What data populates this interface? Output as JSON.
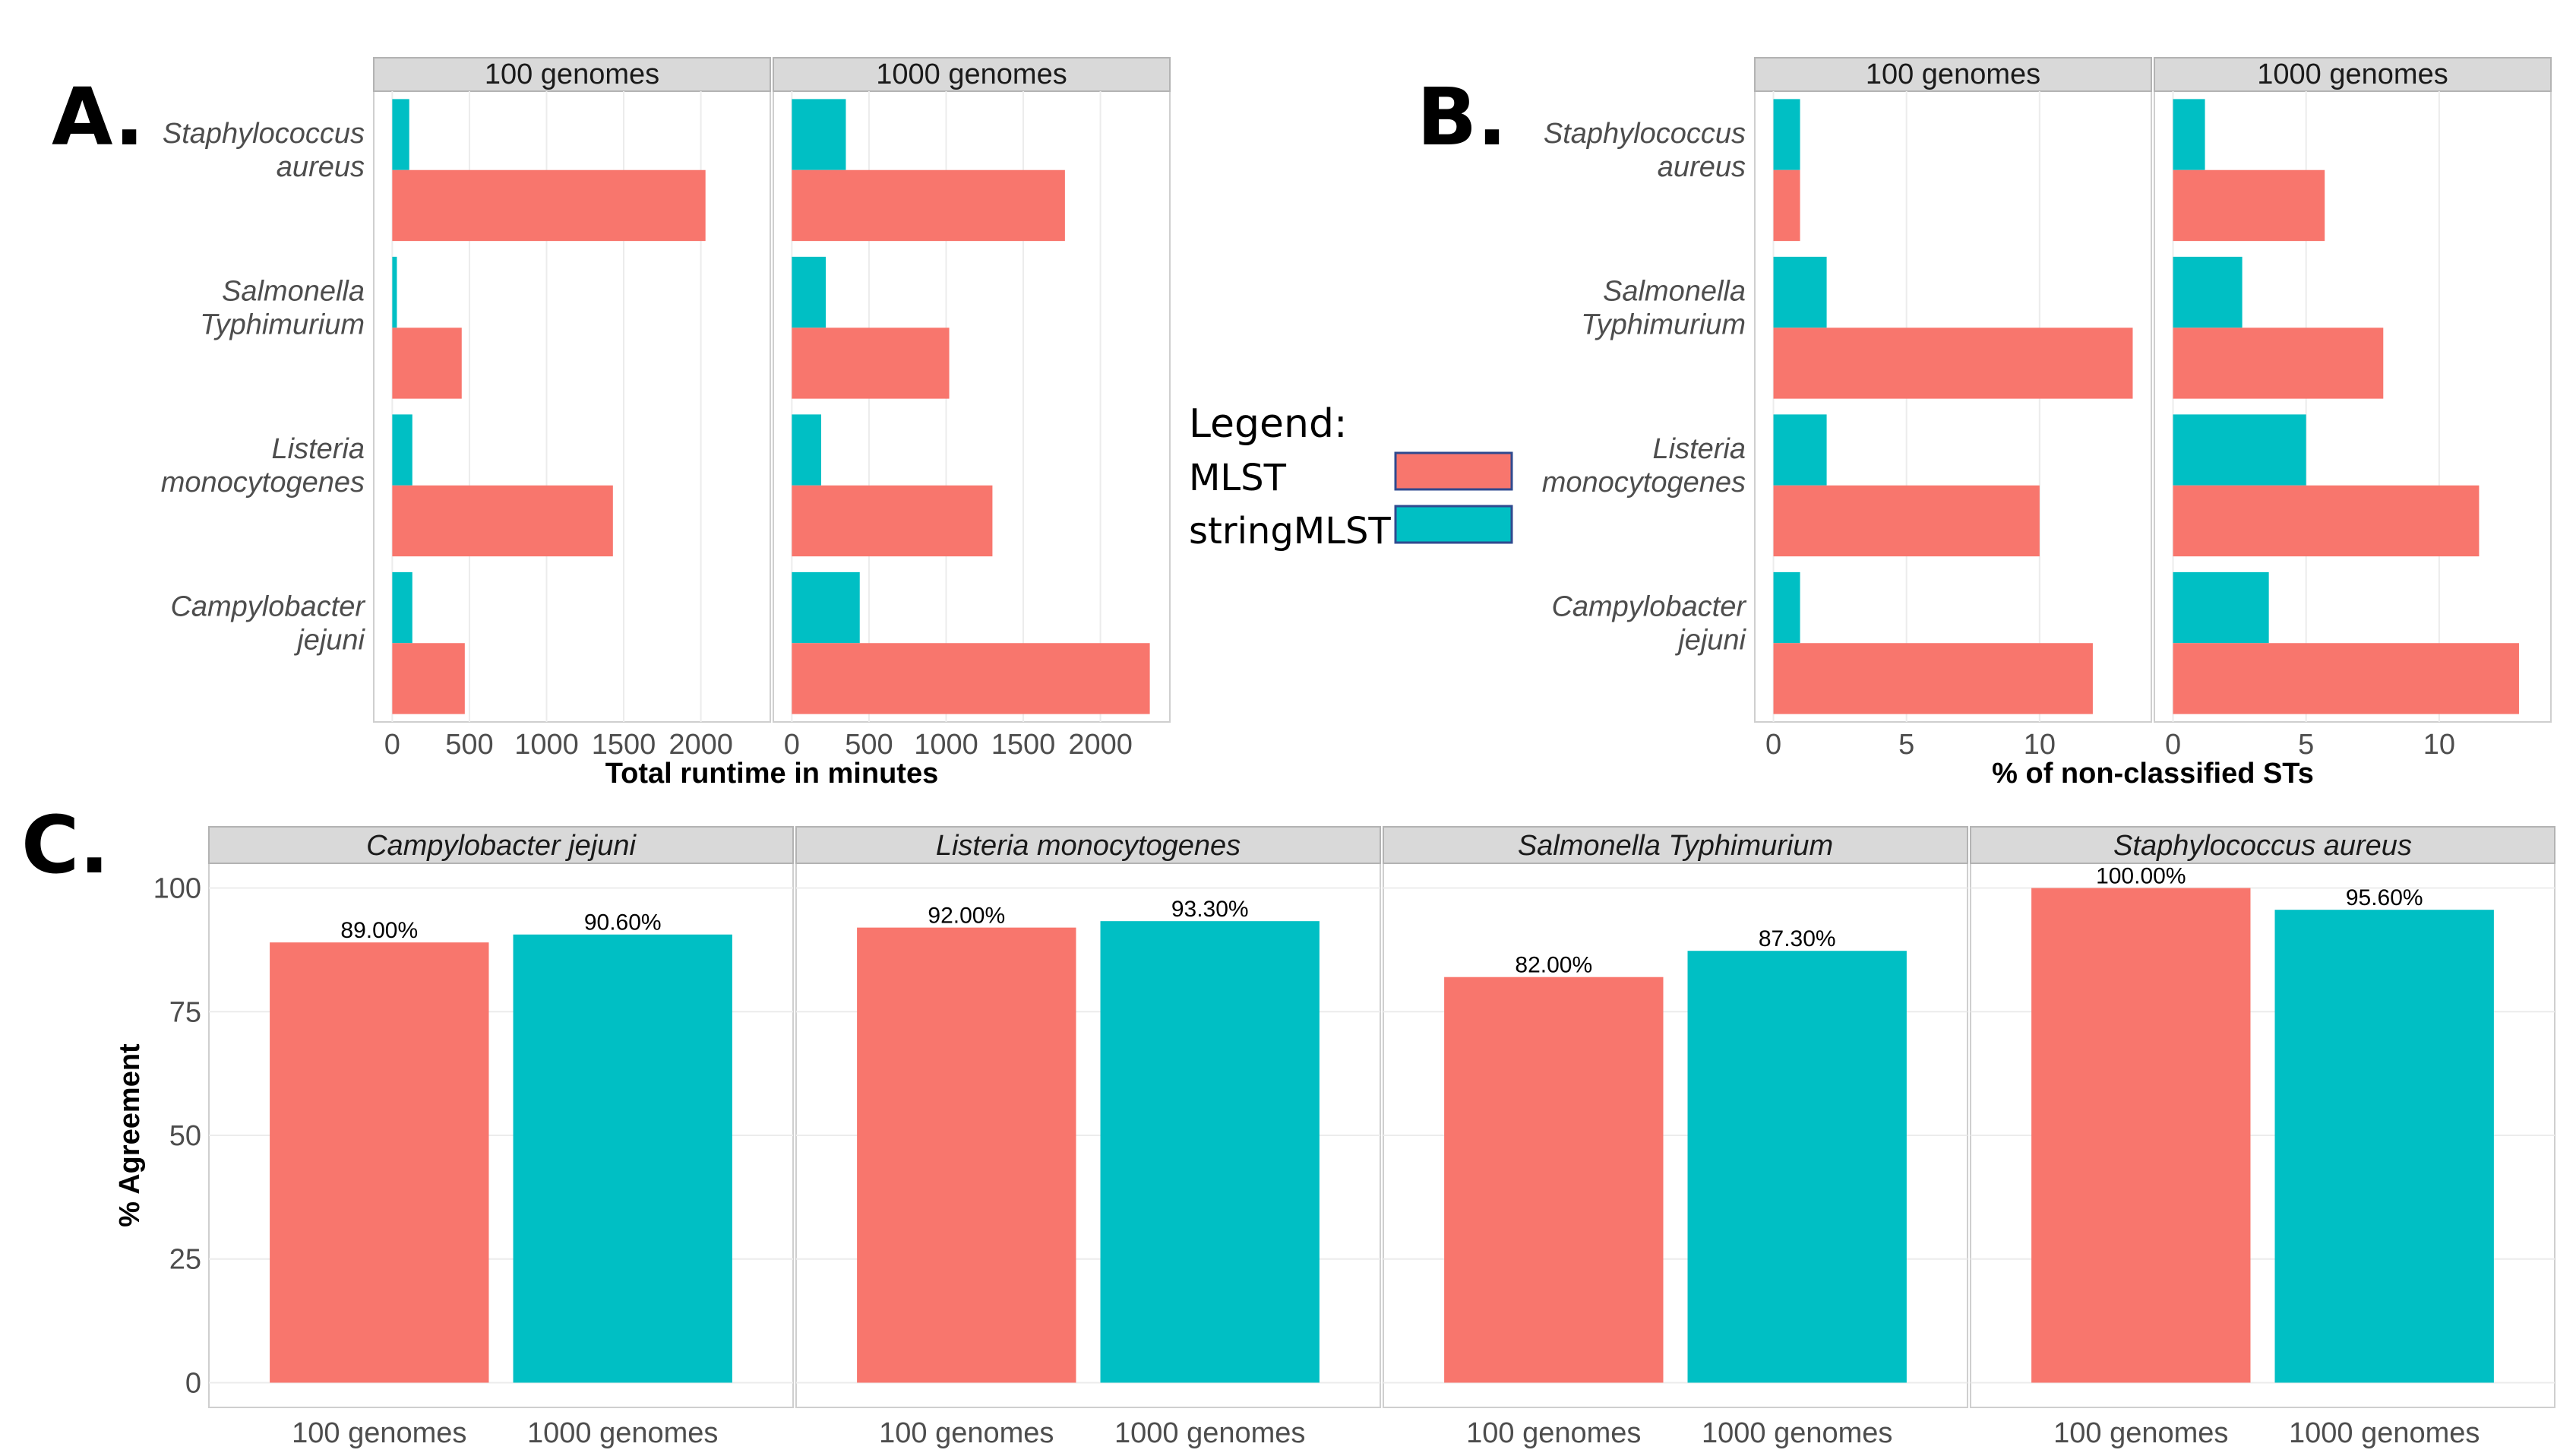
{
  "figure": {
    "panel_letters": [
      "A.",
      "B.",
      "C."
    ],
    "legend": {
      "title": "Legend:",
      "items": [
        {
          "label": "MLST",
          "color": "#F8766D"
        },
        {
          "label": "stringMLST",
          "color": "#00BFC4"
        }
      ]
    }
  },
  "chart_data": [
    {
      "id": "A",
      "type": "bar",
      "orientation": "horizontal",
      "facets": [
        "100 genomes",
        "1000 genomes"
      ],
      "categories": [
        "Staphylococcus aureus",
        "Salmonella Typhimurium",
        "Listeria monocytogenes",
        "Campylobacter jejuni"
      ],
      "category_lines": [
        [
          "Staphylococcus",
          "aureus"
        ],
        [
          "Salmonella",
          "Typhimurium"
        ],
        [
          "Listeria",
          "monocytogenes"
        ],
        [
          "Campylobacter",
          "jejuni"
        ]
      ],
      "series": [
        {
          "name": "stringMLST",
          "color": "#00BFC4",
          "values": [
            [
              110,
              30,
              130,
              130
            ],
            [
              350,
              220,
              190,
              440
            ]
          ]
        },
        {
          "name": "MLST",
          "color": "#F8766D",
          "values": [
            [
              2030,
              450,
              1430,
              470
            ],
            [
              1770,
              1020,
              1300,
              2320
            ]
          ]
        }
      ],
      "xlim": [
        -120,
        2450
      ],
      "xticks": [
        0,
        500,
        1000,
        1500,
        2000
      ],
      "tick_labels": [
        "0",
        "500",
        "1000",
        "1500",
        "2000"
      ],
      "xlabel": "Total runtime in minutes"
    },
    {
      "id": "B",
      "type": "bar",
      "orientation": "horizontal",
      "facets": [
        "100 genomes",
        "1000 genomes"
      ],
      "categories": [
        "Staphylococcus aureus",
        "Salmonella Typhimurium",
        "Listeria monocytogenes",
        "Campylobacter jejuni"
      ],
      "category_lines": [
        [
          "Staphylococcus",
          "aureus"
        ],
        [
          "Salmonella",
          "Typhimurium"
        ],
        [
          "Listeria",
          "monocytogenes"
        ],
        [
          "Campylobacter",
          "jejuni"
        ]
      ],
      "series": [
        {
          "name": "stringMLST",
          "color": "#00BFC4",
          "values": [
            [
              1.0,
              2.0,
              2.0,
              1.0
            ],
            [
              1.2,
              2.6,
              5.0,
              3.6
            ]
          ]
        },
        {
          "name": "MLST",
          "color": "#F8766D",
          "values": [
            [
              1.0,
              13.5,
              10.0,
              12.0
            ],
            [
              5.7,
              7.9,
              11.5,
              13.0
            ]
          ]
        }
      ],
      "xlim": [
        -0.7,
        14.2
      ],
      "xticks": [
        0,
        5,
        10
      ],
      "tick_labels": [
        "0",
        "5",
        "10"
      ],
      "xlabel": "% of non-classified STs"
    },
    {
      "id": "C",
      "type": "bar",
      "orientation": "vertical",
      "facets": [
        "Campylobacter jejuni",
        "Listeria monocytogenes",
        "Salmonella Typhimurium",
        "Staphylococcus aureus"
      ],
      "categories": [
        "100 genomes",
        "1000 genomes"
      ],
      "colors": [
        "#F8766D",
        "#00BFC4"
      ],
      "values": [
        [
          89.0,
          90.6
        ],
        [
          92.0,
          93.3
        ],
        [
          82.0,
          87.3
        ],
        [
          100.0,
          95.6
        ]
      ],
      "labels": [
        [
          "89.00%",
          "90.60%"
        ],
        [
          "92.00%",
          "93.30%"
        ],
        [
          "82.00%",
          "87.30%"
        ],
        [
          "100.00%",
          "95.60%"
        ]
      ],
      "ylim": [
        -5,
        105
      ],
      "yticks": [
        0,
        25,
        50,
        75,
        100
      ],
      "tick_labels": [
        "0",
        "25",
        "50",
        "75",
        "100"
      ],
      "ylabel": "% Agreement"
    }
  ]
}
